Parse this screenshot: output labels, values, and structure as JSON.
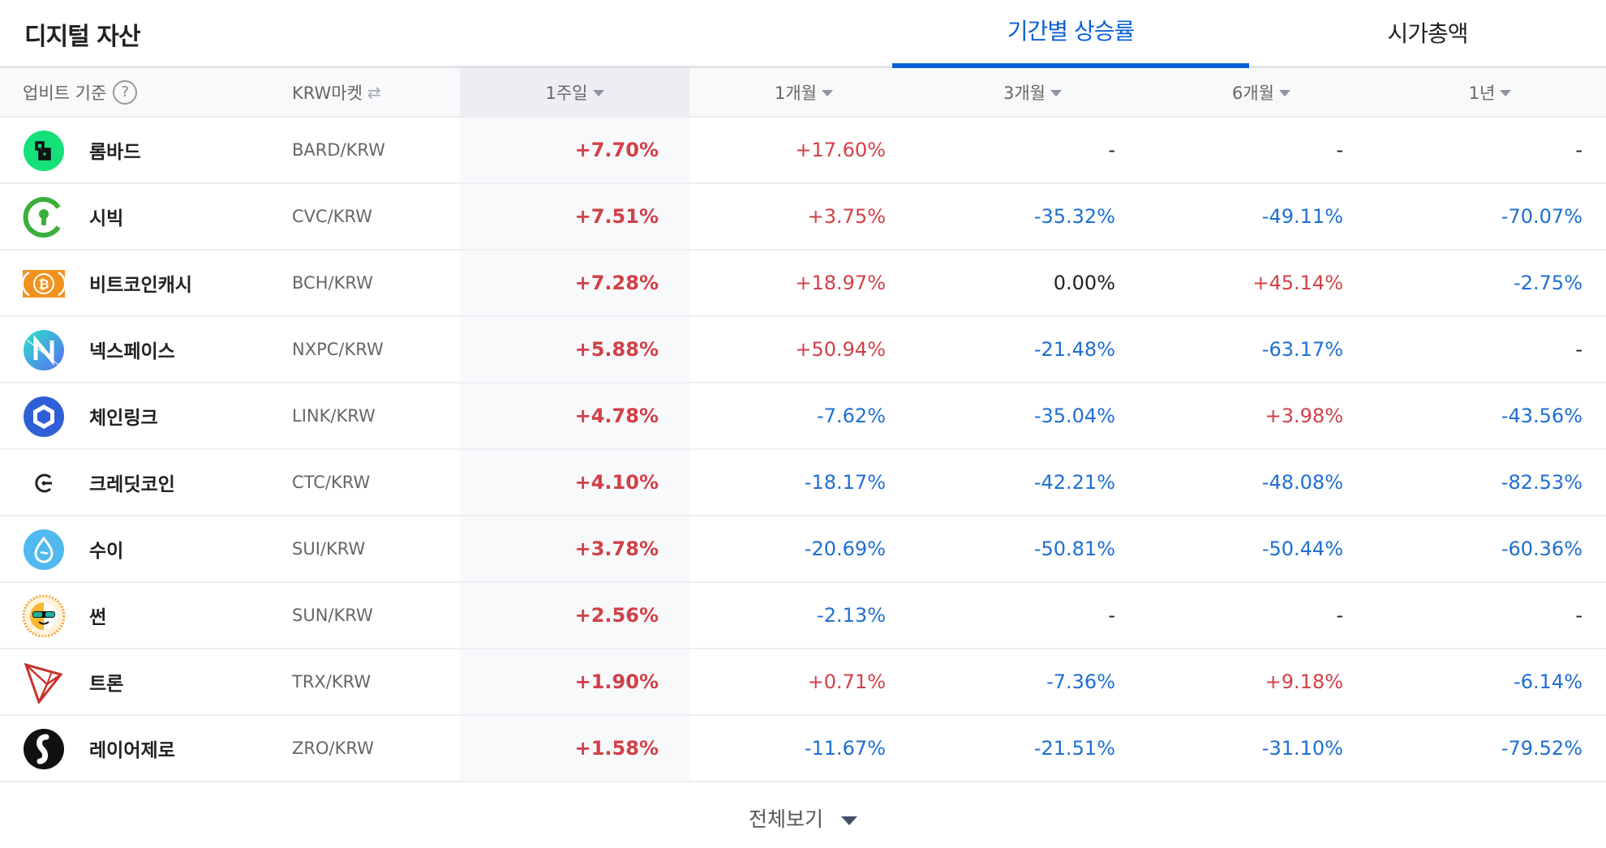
{
  "header": {
    "title": "디지털 자산",
    "tabs": [
      {
        "label": "기간별 상승률",
        "active": true
      },
      {
        "label": "시가총액",
        "active": false
      }
    ]
  },
  "table": {
    "columns": {
      "name": "업비트 기준",
      "market": "KRW마켓",
      "week": "1주일",
      "month": "1개월",
      "month3": "3개월",
      "month6": "6개월",
      "year": "1년"
    },
    "sorted_column": "1주일",
    "rows": [
      {
        "icon": "bard-icon",
        "name": "롬바드",
        "market": "BARD/KRW",
        "week": "+7.70%",
        "month": "+17.60%",
        "month3": "-",
        "month6": "-",
        "year": "-"
      },
      {
        "icon": "cvc-icon",
        "name": "시빅",
        "market": "CVC/KRW",
        "week": "+7.51%",
        "month": "+3.75%",
        "month3": "-35.32%",
        "month6": "-49.11%",
        "year": "-70.07%"
      },
      {
        "icon": "bch-icon",
        "name": "비트코인캐시",
        "market": "BCH/KRW",
        "week": "+7.28%",
        "month": "+18.97%",
        "month3": "0.00%",
        "month6": "+45.14%",
        "year": "-2.75%"
      },
      {
        "icon": "nxpc-icon",
        "name": "넥스페이스",
        "market": "NXPC/KRW",
        "week": "+5.88%",
        "month": "+50.94%",
        "month3": "-21.48%",
        "month6": "-63.17%",
        "year": "-"
      },
      {
        "icon": "link-icon",
        "name": "체인링크",
        "market": "LINK/KRW",
        "week": "+4.78%",
        "month": "-7.62%",
        "month3": "-35.04%",
        "month6": "+3.98%",
        "year": "-43.56%"
      },
      {
        "icon": "ctc-icon",
        "name": "크레딧코인",
        "market": "CTC/KRW",
        "week": "+4.10%",
        "month": "-18.17%",
        "month3": "-42.21%",
        "month6": "-48.08%",
        "year": "-82.53%"
      },
      {
        "icon": "sui-icon",
        "name": "수이",
        "market": "SUI/KRW",
        "week": "+3.78%",
        "month": "-20.69%",
        "month3": "-50.81%",
        "month6": "-50.44%",
        "year": "-60.36%"
      },
      {
        "icon": "sun-icon",
        "name": "썬",
        "market": "SUN/KRW",
        "week": "+2.56%",
        "month": "-2.13%",
        "month3": "-",
        "month6": "-",
        "year": "-"
      },
      {
        "icon": "trx-icon",
        "name": "트론",
        "market": "TRX/KRW",
        "week": "+1.90%",
        "month": "+0.71%",
        "month3": "-7.36%",
        "month6": "+9.18%",
        "year": "-6.14%"
      },
      {
        "icon": "zro-icon",
        "name": "레이어제로",
        "market": "ZRO/KRW",
        "week": "+1.58%",
        "month": "-11.67%",
        "month3": "-21.51%",
        "month6": "-31.10%",
        "year": "-79.52%"
      }
    ]
  },
  "footer": {
    "more_label": "전체보기"
  },
  "colors": {
    "accent": "#0a5fd6",
    "up": "#d24048",
    "down": "#1e6fd2",
    "flat": "#222222"
  }
}
